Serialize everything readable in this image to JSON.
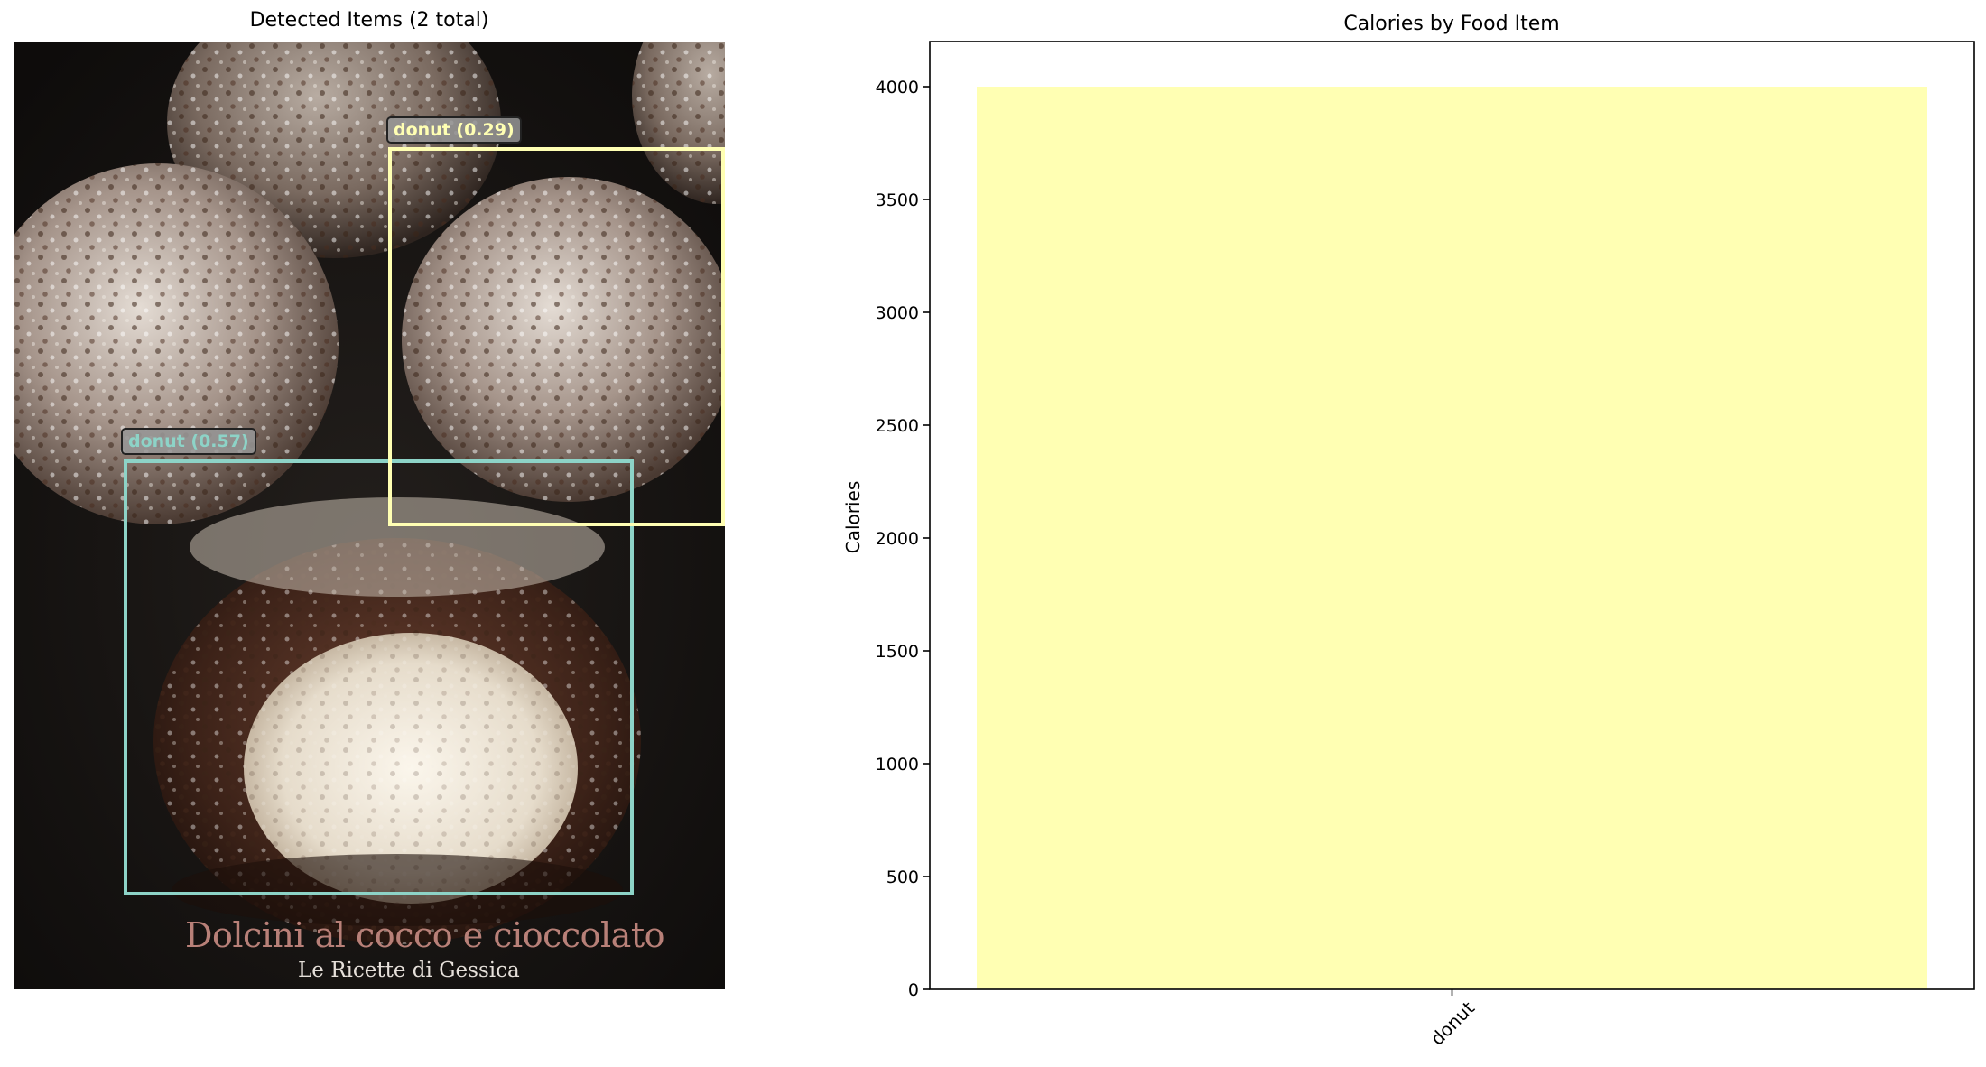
{
  "left_panel": {
    "title": "Detected Items (2 total)",
    "detections": [
      {
        "label": "donut (0.57)",
        "color": "#8dd3c7"
      },
      {
        "label": "donut (0.29)",
        "color": "#ffffb3"
      }
    ],
    "image_caption": {
      "main": "Dolcini al cocco e cioccolato",
      "sub": "Le Ricette di Gessica"
    }
  },
  "chart_data": {
    "type": "bar",
    "title": "Calories by Food Item",
    "xlabel": "",
    "ylabel": "Calories",
    "categories": [
      "donut"
    ],
    "values": [
      4000
    ],
    "ylim": [
      0,
      4200
    ],
    "yticks": [
      0,
      500,
      1000,
      1500,
      2000,
      2500,
      3000,
      3500,
      4000
    ],
    "bar_color": "#ffffb3",
    "xtick_rotation": -45,
    "grid": false
  }
}
